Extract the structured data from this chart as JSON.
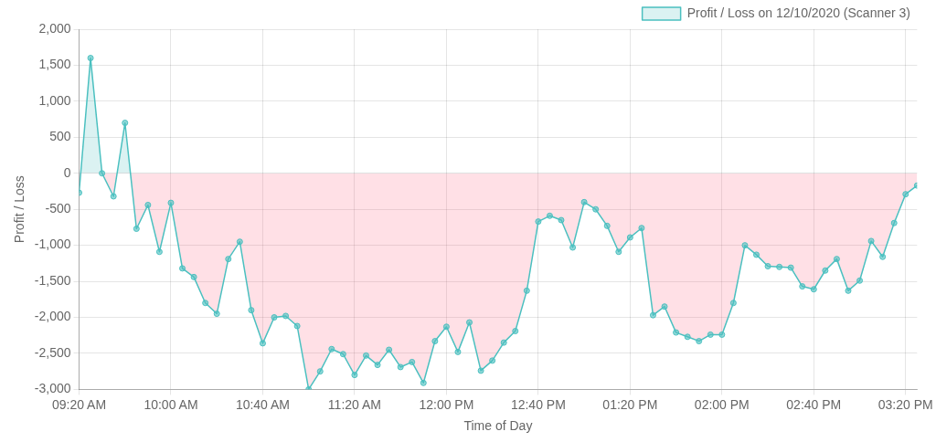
{
  "chart_data": {
    "type": "area",
    "xlabel": "Time of Day",
    "ylabel": "Profit / Loss",
    "legend": "top right",
    "grid": true,
    "marker": "circle",
    "line_style": "solid",
    "x": [
      9.3333,
      9.4167,
      9.5,
      9.5833,
      9.6667,
      9.75,
      9.8333,
      9.9167,
      10,
      10.0833,
      10.1667,
      10.25,
      10.3333,
      10.4167,
      10.5,
      10.5833,
      10.6667,
      10.75,
      10.8333,
      10.9167,
      11,
      11.0833,
      11.1667,
      11.25,
      11.3333,
      11.4167,
      11.5,
      11.5833,
      11.6667,
      11.75,
      11.8333,
      11.9167,
      12,
      12.0833,
      12.1667,
      12.25,
      12.3333,
      12.4167,
      12.5,
      12.5833,
      12.6667,
      12.75,
      12.8333,
      12.9167,
      13,
      13.0833,
      13.1667,
      13.25,
      13.3333,
      13.4167,
      13.5,
      13.5833,
      13.6667,
      13.75,
      13.8333,
      13.9167,
      14,
      14.0833,
      14.1667,
      14.25,
      14.3333,
      14.4167,
      14.5,
      14.5833,
      14.6667,
      14.75,
      14.8333,
      14.9167,
      15,
      15.0833,
      15.1667,
      15.25,
      15.3333,
      15.4167
    ],
    "series": [
      {
        "name": "Profit / Loss on 12/10/2020 (Scanner 3)",
        "color": "#4bc0c0",
        "values": [
          -270,
          1600,
          0,
          -320,
          700,
          -770,
          -440,
          -1090,
          -410,
          -1320,
          -1440,
          -1800,
          -1950,
          -1190,
          -950,
          -1900,
          -2360,
          -2000,
          -1980,
          -2120,
          -3000,
          -2750,
          -2440,
          -2510,
          -2800,
          -2530,
          -2660,
          -2450,
          -2690,
          -2620,
          -2910,
          -2330,
          -2130,
          -2480,
          -2070,
          -2740,
          -2600,
          -2350,
          -2190,
          -1630,
          -670,
          -590,
          -650,
          -1030,
          -400,
          -500,
          -730,
          -1090,
          -890,
          -760,
          -1970,
          -1850,
          -2210,
          -2270,
          -2330,
          -2240,
          -2240,
          -1800,
          -1000,
          -1130,
          -1290,
          -1300,
          -1310,
          -1570,
          -1610,
          -1350,
          -1190,
          -1630,
          -1490,
          -940,
          -1160,
          -690,
          -290,
          -170
        ]
      }
    ],
    "xlim": [
      9.3333,
      15.4167
    ],
    "xticks": [
      {
        "value": 9.3333,
        "label": "09:20 AM"
      },
      {
        "value": 10,
        "label": "10:00 AM"
      },
      {
        "value": 10.6667,
        "label": "10:40 AM"
      },
      {
        "value": 11.3333,
        "label": "11:20 AM"
      },
      {
        "value": 12,
        "label": "12:00 PM"
      },
      {
        "value": 12.6667,
        "label": "12:40 PM"
      },
      {
        "value": 13.3333,
        "label": "01:20 PM"
      },
      {
        "value": 14,
        "label": "02:00 PM"
      },
      {
        "value": 14.6667,
        "label": "02:40 PM"
      },
      {
        "value": 15.3333,
        "label": "03:20 PM"
      }
    ],
    "ylim": [
      -3000,
      2000
    ],
    "yticks": [
      {
        "value": -3000,
        "label": "-3,000"
      },
      {
        "value": -2500,
        "label": "-2,500"
      },
      {
        "value": -2000,
        "label": "-2,000"
      },
      {
        "value": -1500,
        "label": "-1,500"
      },
      {
        "value": -1000,
        "label": "-1,000"
      },
      -500,
      0,
      500,
      {
        "value": 1000,
        "label": "1,000"
      },
      {
        "value": 1500,
        "label": "1,500"
      },
      {
        "value": 2000,
        "label": "2,000"
      }
    ]
  }
}
